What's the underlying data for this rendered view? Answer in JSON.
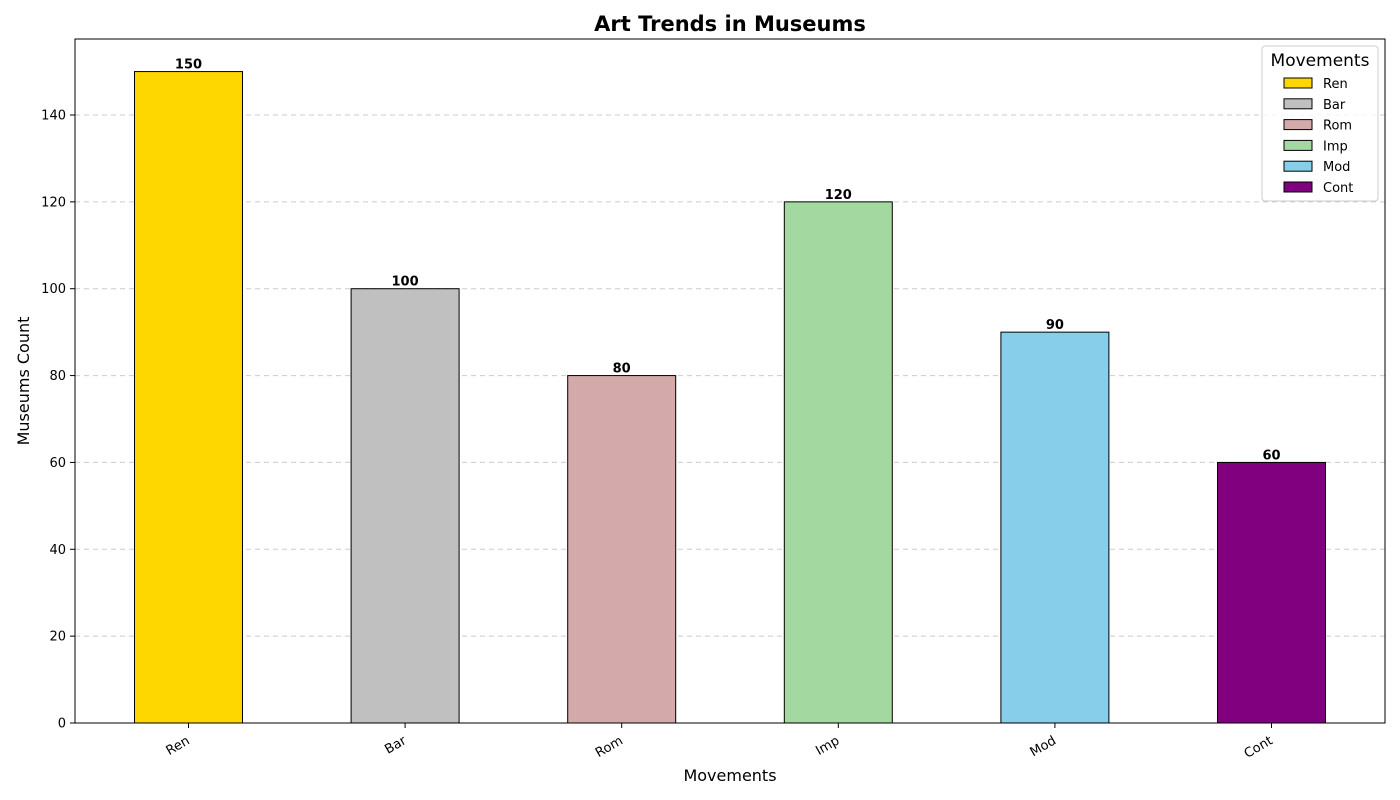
{
  "chart_data": {
    "type": "bar",
    "title": "Art Trends in Museums",
    "xlabel": "Movements",
    "ylabel": "Museums Count",
    "categories": [
      "Ren",
      "Bar",
      "Rom",
      "Imp",
      "Mod",
      "Cont"
    ],
    "values": [
      150,
      100,
      80,
      120,
      90,
      60
    ],
    "colors": [
      "#ffd700",
      "#c0c0c0",
      "#d3a9a9",
      "#a3d8a0",
      "#87ceeb",
      "#800080"
    ],
    "ylim": [
      0,
      157.5
    ],
    "yticks": [
      0,
      20,
      40,
      60,
      80,
      100,
      120,
      140
    ],
    "grid": "y-dashed",
    "legend": {
      "title": "Movements",
      "placement": "top-right",
      "entries": [
        "Ren",
        "Bar",
        "Rom",
        "Imp",
        "Mod",
        "Cont"
      ]
    }
  }
}
